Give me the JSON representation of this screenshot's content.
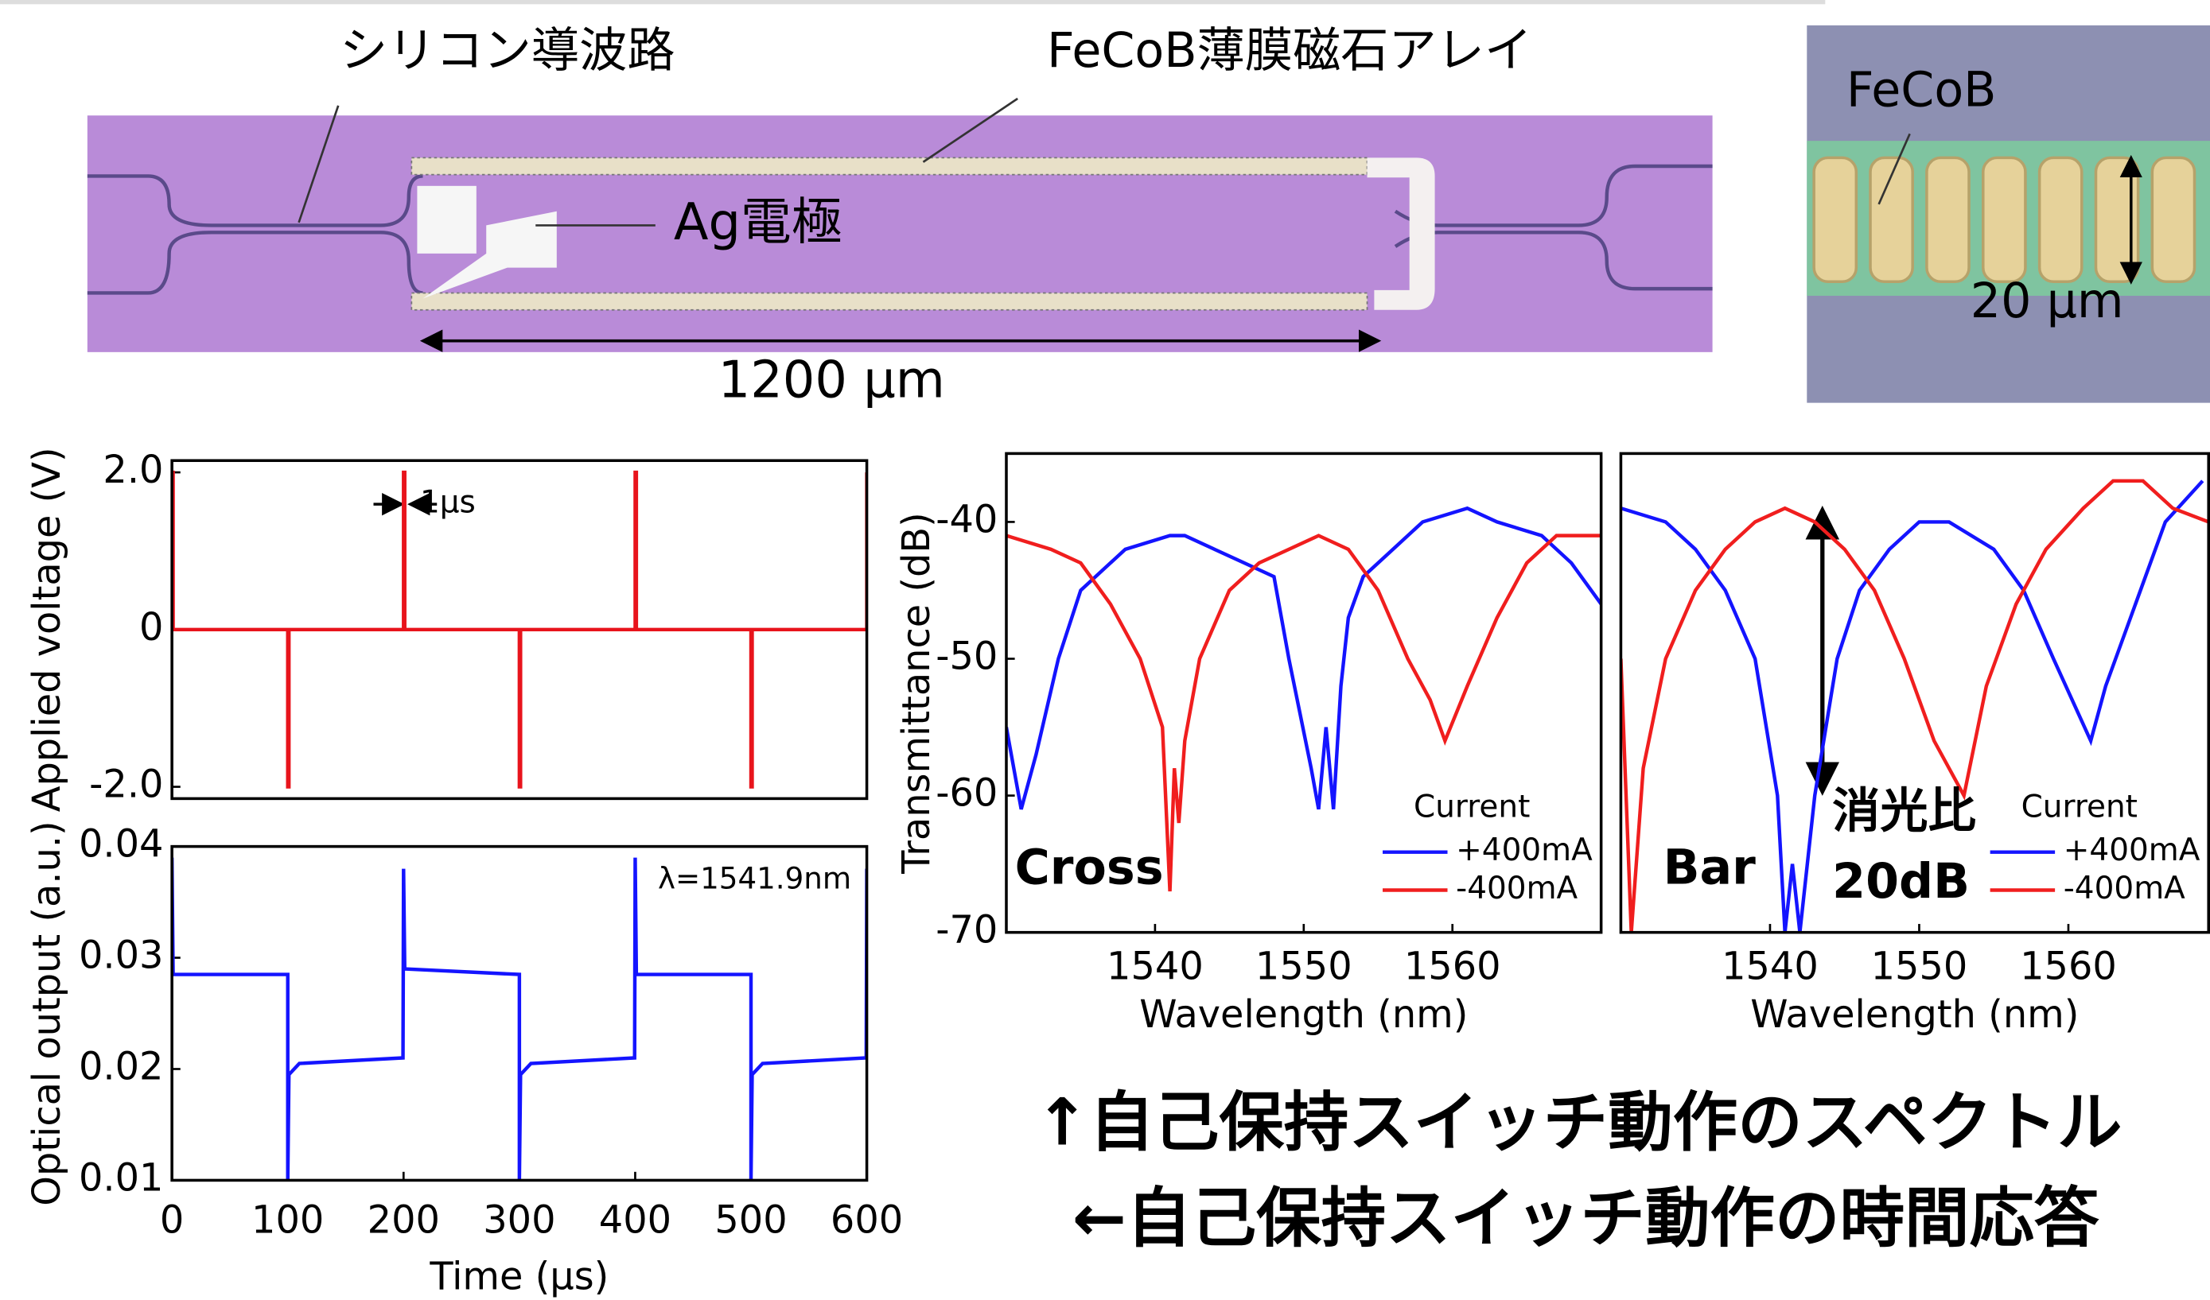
{
  "photos": {
    "waveguide_label": "シリコン導波路",
    "magnet_label": "FeCoB薄膜磁石アレイ",
    "electrode_label": "Ag電極",
    "length_label": "1200 μm",
    "inset_material_label": "FeCoB",
    "inset_width_label": "20 μm"
  },
  "captions": [
    "↑自己保持スイッチ動作のスペクトル",
    "←自己保持スイッチ動作の時間応答"
  ],
  "chart_data": [
    {
      "type": "line",
      "ylabel": "Applied voltage (V)",
      "xlim": [
        0,
        600
      ],
      "ylim": [
        -2.15,
        2.15
      ],
      "yticks": [
        {
          "value": 2,
          "label": "2.0"
        },
        0,
        {
          "value": -2,
          "label": "-2.0"
        }
      ],
      "annotations": [
        "1μs"
      ],
      "series": [
        {
          "color": "#e8141c",
          "x": [
            0,
            1,
            1,
            100,
            100,
            101,
            101,
            200,
            200,
            201,
            201,
            300,
            300,
            301,
            301,
            400,
            400,
            401,
            401,
            500,
            500,
            501,
            501,
            600,
            600
          ],
          "values": [
            2,
            2,
            0,
            0,
            -2,
            -2,
            0,
            0,
            2,
            2,
            0,
            0,
            -2,
            -2,
            0,
            0,
            2,
            2,
            0,
            0,
            -2,
            -2,
            0,
            0,
            2
          ]
        }
      ]
    },
    {
      "type": "line",
      "ylabel": "Optical output (a.u.)",
      "xlabel": "Time (μs)",
      "xlim": [
        0,
        600
      ],
      "ylim": [
        0.01,
        0.04
      ],
      "xticks": [
        0,
        100,
        200,
        300,
        400,
        500,
        600
      ],
      "yticks": [
        0.04,
        0.03,
        0.02,
        0.01
      ],
      "annotations": [
        "λ=1541.9nm"
      ],
      "series": [
        {
          "color": "#1414ff",
          "x": [
            0,
            1,
            100,
            100,
            101,
            110,
            199.5,
            200,
            201,
            300,
            300,
            301,
            310,
            399.5,
            400,
            401,
            500,
            500,
            501,
            510,
            599.5,
            600,
            600
          ],
          "values": [
            0.039,
            0.0285,
            0.0285,
            0.01,
            0.0195,
            0.0205,
            0.021,
            0.038,
            0.029,
            0.0285,
            0.01,
            0.0195,
            0.0205,
            0.021,
            0.039,
            0.0285,
            0.0285,
            0.01,
            0.0195,
            0.0205,
            0.021,
            0.038,
            0.028
          ]
        }
      ]
    },
    {
      "type": "line",
      "xlabel": "Wavelength (nm)",
      "ylabel": "Transmittance (dB)",
      "xlim": [
        1530,
        1570
      ],
      "ylim": [
        -70,
        -35
      ],
      "xticks": [
        1540,
        1550,
        1560
      ],
      "yticks": [
        -40,
        -50,
        -60,
        -70
      ],
      "legend_title": "Current",
      "legend": "lower right",
      "annotations": [
        "Cross"
      ],
      "series": [
        {
          "name": "+400mA",
          "color": "#1414ff",
          "x": [
            1530,
            1531,
            1532,
            1533.5,
            1535,
            1538,
            1541,
            1542,
            1544,
            1546,
            1548,
            1549,
            1550.5,
            1551,
            1551.5,
            1552,
            1552.5,
            1553,
            1554,
            1556,
            1558,
            1561,
            1563,
            1566,
            1568,
            1570
          ],
          "values": [
            -55,
            -61,
            -57,
            -50,
            -45,
            -42,
            -41,
            -41,
            -42,
            -43,
            -44,
            -50,
            -58,
            -61,
            -55,
            -61,
            -52,
            -47,
            -44,
            -42,
            -40,
            -39,
            -40,
            -41,
            -43,
            -46
          ]
        },
        {
          "name": "-400mA",
          "color": "#f01e1e",
          "x": [
            1530,
            1533,
            1535,
            1537,
            1539,
            1540.5,
            1541,
            1541.3,
            1541.6,
            1542,
            1543,
            1545,
            1547,
            1549,
            1551,
            1553,
            1555,
            1557,
            1558.5,
            1559.5,
            1561,
            1563,
            1565,
            1567,
            1570
          ],
          "values": [
            -41,
            -42,
            -43,
            -46,
            -50,
            -55,
            -67,
            -58,
            -62,
            -56,
            -50,
            -45,
            -43,
            -42,
            -41,
            -42,
            -45,
            -50,
            -53,
            -56,
            -52,
            -47,
            -43,
            -41,
            -41
          ]
        }
      ]
    },
    {
      "type": "line",
      "xlabel": "Wavelength (nm)",
      "xlim": [
        1530,
        1569.4
      ],
      "ylim": [
        -70,
        -35
      ],
      "xticks": [
        1540,
        1550,
        1560
      ],
      "legend_title": "Current",
      "legend": "lower right",
      "annotations": [
        "Bar",
        "消光比",
        "20dB"
      ],
      "series": [
        {
          "name": "+400mA",
          "color": "#1414ff",
          "x": [
            1530,
            1533,
            1535,
            1537,
            1539,
            1540.5,
            1541,
            1541.5,
            1542,
            1543,
            1544.5,
            1546,
            1548,
            1550,
            1552,
            1555,
            1557,
            1559,
            1561.5,
            1562.5,
            1564.5,
            1566.5,
            1569
          ],
          "values": [
            -39,
            -40,
            -42,
            -45,
            -50,
            -60,
            -70,
            -65,
            -70,
            -60,
            -50,
            -45,
            -42,
            -40,
            -40,
            -42,
            -45,
            -50,
            -56,
            -52,
            -46,
            -40,
            -37
          ]
        },
        {
          "name": "-400mA",
          "color": "#f01e1e",
          "x": [
            1530,
            1530.7,
            1531.5,
            1533,
            1535,
            1537,
            1539,
            1541,
            1543,
            1545,
            1547,
            1549,
            1551,
            1553,
            1554.5,
            1556.5,
            1558.5,
            1561,
            1563,
            1565,
            1567,
            1569.4
          ],
          "values": [
            -50,
            -70,
            -58,
            -50,
            -45,
            -42,
            -40,
            -39,
            -40,
            -42,
            -45,
            -50,
            -56,
            -60,
            -52,
            -46,
            -42,
            -39,
            -37,
            -37,
            -39,
            -40
          ]
        }
      ]
    }
  ]
}
